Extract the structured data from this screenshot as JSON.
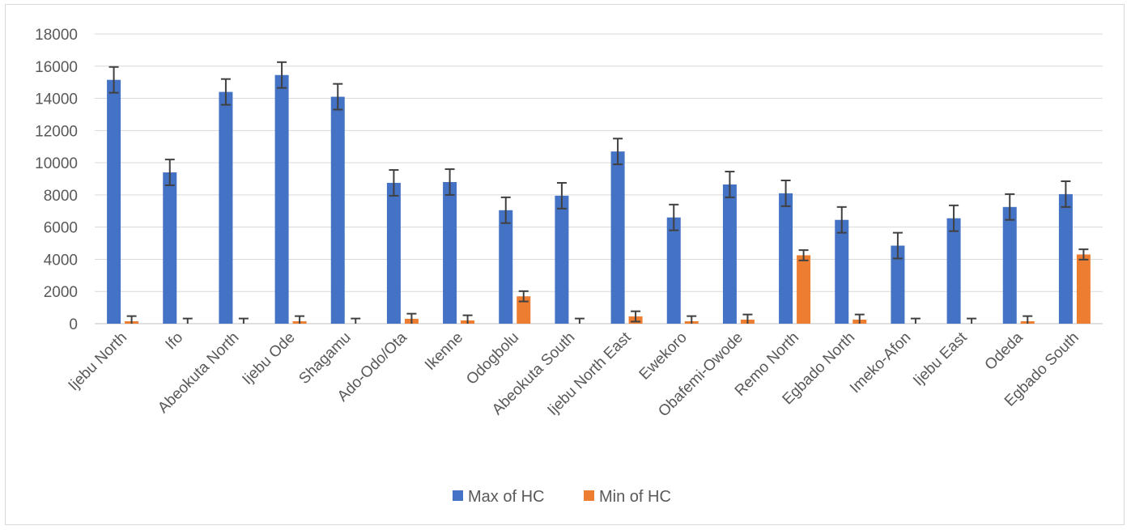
{
  "chart_data": {
    "type": "bar",
    "title": "",
    "xlabel": "",
    "ylabel": "",
    "ylim": [
      0,
      18000
    ],
    "yticks": [
      0,
      2000,
      4000,
      6000,
      8000,
      10000,
      12000,
      14000,
      16000,
      18000
    ],
    "grid": true,
    "legend_position": "bottom",
    "categories": [
      "Ijebu North",
      "Ifo",
      "Abeokuta North",
      "Ijebu Ode",
      "Shagamu",
      "Ado-Odo/Ota",
      "Ikenne",
      "Odogbolu",
      "Abeokuta South",
      "Ijebu North East",
      "Ewekoro",
      "Obafemi-Owode",
      "Remo North",
      "Egbado North",
      "Imeko-Afon",
      "Ijebu East",
      "Odeda",
      "Egbado South"
    ],
    "series": [
      {
        "name": "Max of HC",
        "color": "#4472C4",
        "values": [
          15150,
          9400,
          14400,
          15450,
          14100,
          8750,
          8800,
          7050,
          7950,
          10700,
          6600,
          8650,
          8100,
          6450,
          4850,
          6550,
          7250,
          8050
        ],
        "error": 800
      },
      {
        "name": "Min of HC",
        "color": "#ED7D31",
        "values": [
          150,
          0,
          0,
          150,
          0,
          300,
          200,
          1700,
          0,
          450,
          150,
          250,
          4250,
          250,
          0,
          0,
          150,
          4300
        ],
        "error": 320
      }
    ]
  }
}
